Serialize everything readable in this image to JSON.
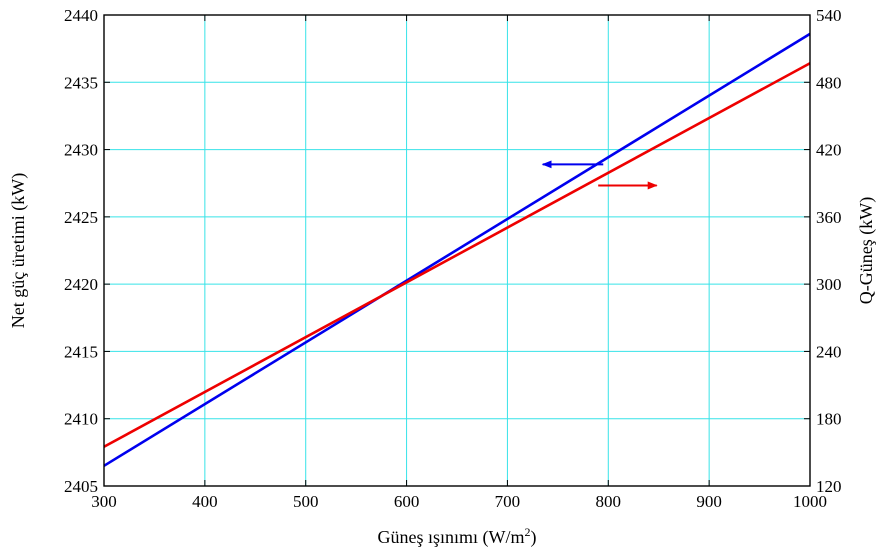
{
  "chart_data": {
    "type": "line",
    "xlabel": "Güneş ışınımı (W/m",
    "xlabel_superscript": "2",
    "xlabel_suffix": ")",
    "ylabel_left": "Net güç üretimi (kW)",
    "ylabel_right": "Q-Güneş (kW)",
    "xlim": [
      300,
      1000
    ],
    "ylim_left": [
      2405,
      2440
    ],
    "ylim_right": [
      120,
      540
    ],
    "xticks": [
      300,
      400,
      500,
      600,
      700,
      800,
      900,
      1000
    ],
    "yticks_left": [
      2405,
      2410,
      2415,
      2420,
      2425,
      2430,
      2435,
      2440
    ],
    "yticks_right": [
      120,
      180,
      240,
      300,
      360,
      420,
      480,
      540
    ],
    "grid": true,
    "grid_color": "#37e3e8",
    "series": [
      {
        "axis": "left",
        "color": "#0000ee",
        "x": [
          300,
          1000
        ],
        "y": [
          2406.5,
          2438.6
        ],
        "arrow": {
          "direction": "left",
          "x_from": 795,
          "x_to": 735,
          "y": 2428.9
        }
      },
      {
        "axis": "right",
        "color": "#ee0000",
        "x": [
          300,
          1000
        ],
        "y": [
          155,
          497
        ],
        "arrow": {
          "direction": "right",
          "x_from": 790,
          "x_to": 848,
          "y": 388
        }
      }
    ]
  }
}
